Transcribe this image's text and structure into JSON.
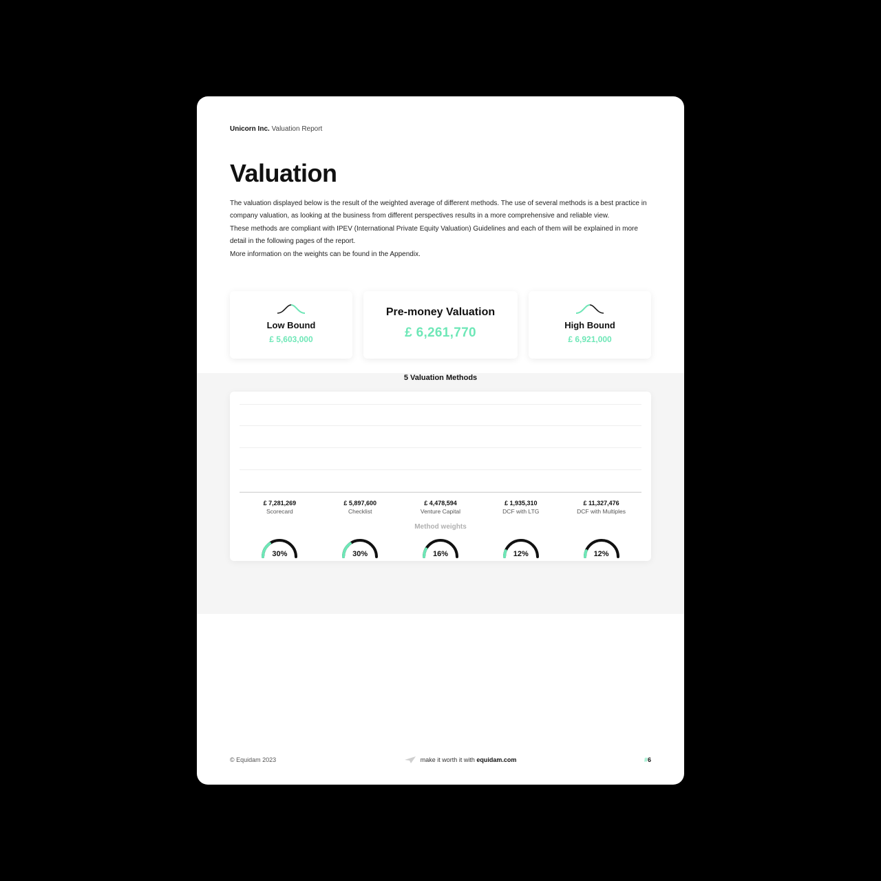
{
  "header": {
    "company": "Unicorn Inc.",
    "report": "Valuation Report"
  },
  "title": "Valuation",
  "paragraphs": [
    "The valuation displayed below is the result of the weighted average of different methods. The use of several methods is a best practice in company valuation, as looking at the business from different perspectives results in a more comprehensive and reliable view.",
    "These methods are compliant with IPEV (International Private Equity Valuation) Guidelines and each of them will be explained in more detail in the following pages of the report.",
    "More information on the weights can be found in the Appendix."
  ],
  "bounds": {
    "low": {
      "label": "Low Bound",
      "value": "£ 5,603,000",
      "curve_accent_side": "right"
    },
    "mid": {
      "label": "Pre-money Valuation",
      "value": "£ 6,261,770"
    },
    "high": {
      "label": "High Bound",
      "value": "£ 6,921,000",
      "curve_accent_side": "left"
    }
  },
  "methods_title": "5 Valuation Methods",
  "chart": {
    "type": "bar",
    "background_color": "#ffffff",
    "grid_color": "#eeeeee",
    "axis_color": "#d8d8d8",
    "bar_color": "#6ee7b7",
    "bar_width_ratio": 0.72,
    "grid_lines": 5,
    "y_max": 12000000,
    "categories": [
      "Scorecard",
      "Checklist",
      "Venture Capital",
      "DCF with LTG",
      "DCF with Multiples"
    ],
    "value_labels": [
      "£ 7,281,269",
      "£ 5,897,600",
      "£ 4,478,594",
      "£ 1,935,310",
      "£ 11,327,476"
    ],
    "values": [
      7281269,
      5897600,
      4478594,
      1935310,
      11327476
    ],
    "label_fontsize": 9,
    "category_fontsize": 8.5
  },
  "weights": {
    "title": "Method weights",
    "title_color": "#b0b0b0",
    "gauge_track_color": "#111111",
    "gauge_fill_color": "#6ee7b7",
    "gauge_stroke_width": 4,
    "items": [
      {
        "pct": 30,
        "label": "30%"
      },
      {
        "pct": 30,
        "label": "30%"
      },
      {
        "pct": 16,
        "label": "16%"
      },
      {
        "pct": 12,
        "label": "12%"
      },
      {
        "pct": 12,
        "label": "12%"
      }
    ]
  },
  "footer": {
    "copyright": "© Equidam 2023",
    "tagline_prefix": "make it worth it with ",
    "tagline_bold": "equidam.com",
    "page_marker": "#",
    "page_number": "6"
  },
  "colors": {
    "page_bg": "#ffffff",
    "outer_bg": "#000000",
    "accent": "#6ee7b7",
    "grey_band": "#f5f5f5",
    "text": "#111111",
    "muted": "#555555"
  }
}
